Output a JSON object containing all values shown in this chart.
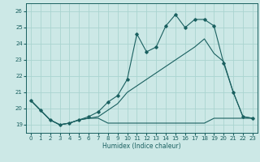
{
  "xlabel": "Humidex (Indice chaleur)",
  "xlim": [
    -0.5,
    23.5
  ],
  "ylim": [
    18.5,
    26.5
  ],
  "yticks": [
    19,
    20,
    21,
    22,
    23,
    24,
    25,
    26
  ],
  "xticks": [
    0,
    1,
    2,
    3,
    4,
    5,
    6,
    7,
    8,
    9,
    10,
    11,
    12,
    13,
    14,
    15,
    16,
    17,
    18,
    19,
    20,
    21,
    22,
    23
  ],
  "background_color": "#cce8e6",
  "grid_color": "#aad4d0",
  "line_color": "#1a6060",
  "line1_y": [
    20.5,
    19.9,
    19.3,
    19.0,
    19.1,
    19.3,
    19.4,
    19.4,
    19.1,
    19.1,
    19.1,
    19.1,
    19.1,
    19.1,
    19.1,
    19.1,
    19.1,
    19.1,
    19.1,
    19.4,
    19.4,
    19.4,
    19.4,
    19.4
  ],
  "line2_y": [
    20.5,
    19.9,
    19.3,
    19.0,
    19.1,
    19.3,
    19.4,
    19.5,
    19.9,
    20.3,
    21.0,
    21.4,
    21.8,
    22.2,
    22.6,
    23.0,
    23.4,
    23.8,
    24.3,
    23.4,
    22.9,
    21.0,
    19.5,
    19.4
  ],
  "line3_y": [
    20.5,
    19.9,
    19.3,
    19.0,
    19.1,
    19.3,
    19.5,
    19.8,
    20.4,
    20.8,
    21.8,
    24.6,
    23.5,
    23.8,
    25.1,
    25.8,
    25.0,
    25.5,
    25.5,
    25.1,
    22.8,
    21.0,
    19.5,
    19.4
  ]
}
